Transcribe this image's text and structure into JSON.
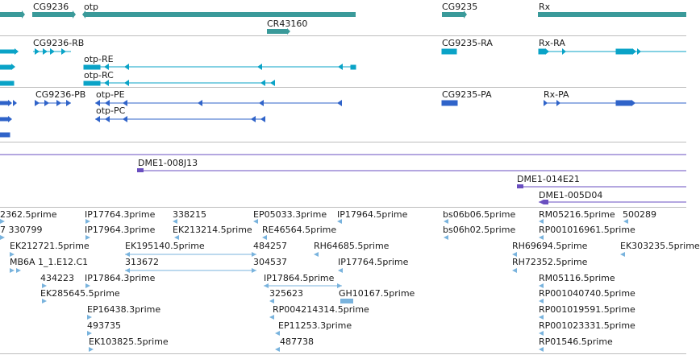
{
  "colors": {
    "gene": "#3a9a9a",
    "rna": "#0aa3c7",
    "protein": "#2f63c9",
    "clone": "#6a4fc0",
    "est": "#79b3dd",
    "separator": "#bdbdbd",
    "text": "#1a1a1a"
  },
  "gene_labels": [
    {
      "id": "cg9236",
      "text": "CG9236"
    },
    {
      "id": "otp",
      "text": "otp"
    },
    {
      "id": "cr43160",
      "text": "CR43160"
    },
    {
      "id": "cg9235",
      "text": "CG9235"
    },
    {
      "id": "rx",
      "text": "Rx"
    }
  ],
  "transcript_labels": [
    {
      "id": "cg9236-rb",
      "text": "CG9236-RB"
    },
    {
      "id": "otp-re",
      "text": "otp-RE"
    },
    {
      "id": "otp-rc",
      "text": "otp-RC"
    },
    {
      "id": "cg9235-ra",
      "text": "CG9235-RA"
    },
    {
      "id": "rx-ra",
      "text": "Rx-RA"
    }
  ],
  "protein_labels": [
    {
      "id": "cg9236-pb",
      "text": "CG9236-PB"
    },
    {
      "id": "otp-pe",
      "text": "otp-PE"
    },
    {
      "id": "otp-pc",
      "text": "otp-PC"
    },
    {
      "id": "cg9235-pa",
      "text": "CG9235-PA"
    },
    {
      "id": "rx-pa",
      "text": "Rx-PA"
    }
  ],
  "clone_labels": [
    {
      "id": "dme1-008j13",
      "text": "DME1-008J13"
    },
    {
      "id": "dme1-014e21",
      "text": "DME1-014E21"
    },
    {
      "id": "dme1-005d04",
      "text": "DME1-005D04"
    }
  ],
  "est_labels": [
    {
      "id": "e01",
      "text": "2362.5prime"
    },
    {
      "id": "e02",
      "text": "IP17764.3prime"
    },
    {
      "id": "e03",
      "text": "338215"
    },
    {
      "id": "e04",
      "text": "EP05033.3prime"
    },
    {
      "id": "e05",
      "text": "IP17964.5prime"
    },
    {
      "id": "e06",
      "text": "bs06b06.5prime"
    },
    {
      "id": "e07",
      "text": "RM05216.5prime"
    },
    {
      "id": "e08",
      "text": "500289"
    },
    {
      "id": "e09",
      "text": "7 330799"
    },
    {
      "id": "e10",
      "text": "IP17964.3prime"
    },
    {
      "id": "e11",
      "text": "EK213214.5prime"
    },
    {
      "id": "e12",
      "text": "RE46564.5prime"
    },
    {
      "id": "e13",
      "text": "bs06h02.5prime"
    },
    {
      "id": "e14",
      "text": "RP001016961.5prime"
    },
    {
      "id": "e15",
      "text": "EK212721.5prime"
    },
    {
      "id": "e16",
      "text": "EK195140.5prime"
    },
    {
      "id": "e17",
      "text": "484257"
    },
    {
      "id": "e18",
      "text": "RH64685.5prime"
    },
    {
      "id": "e19",
      "text": "RH69694.5prime"
    },
    {
      "id": "e20",
      "text": "EK303235.5prime"
    },
    {
      "id": "e21",
      "text": "MB6A 1_1.E12.C1"
    },
    {
      "id": "e22",
      "text": "313672"
    },
    {
      "id": "e23",
      "text": "304537"
    },
    {
      "id": "e24",
      "text": "IP17764.5prime"
    },
    {
      "id": "e25",
      "text": "RH72352.5prime"
    },
    {
      "id": "e26",
      "text": "434223"
    },
    {
      "id": "e27",
      "text": "IP17864.3prime"
    },
    {
      "id": "e28",
      "text": "IP17864.5prime"
    },
    {
      "id": "e29",
      "text": "RM05116.5prime"
    },
    {
      "id": "e30",
      "text": "EK285645.5prime"
    },
    {
      "id": "e31",
      "text": "325623"
    },
    {
      "id": "e32",
      "text": "GH10167.5prime"
    },
    {
      "id": "e33",
      "text": "RP001040740.5prime"
    },
    {
      "id": "e34",
      "text": "EP16438.3prime"
    },
    {
      "id": "e35",
      "text": "RP004214314.5prime"
    },
    {
      "id": "e36",
      "text": "RP001019591.5prime"
    },
    {
      "id": "e37",
      "text": "493735"
    },
    {
      "id": "e38",
      "text": "EP11253.3prime"
    },
    {
      "id": "e39",
      "text": "RP001023331.5prime"
    },
    {
      "id": "e40",
      "text": "EK103825.5prime"
    },
    {
      "id": "e41",
      "text": "487738"
    },
    {
      "id": "e42",
      "text": "RP01546.5prime"
    }
  ]
}
